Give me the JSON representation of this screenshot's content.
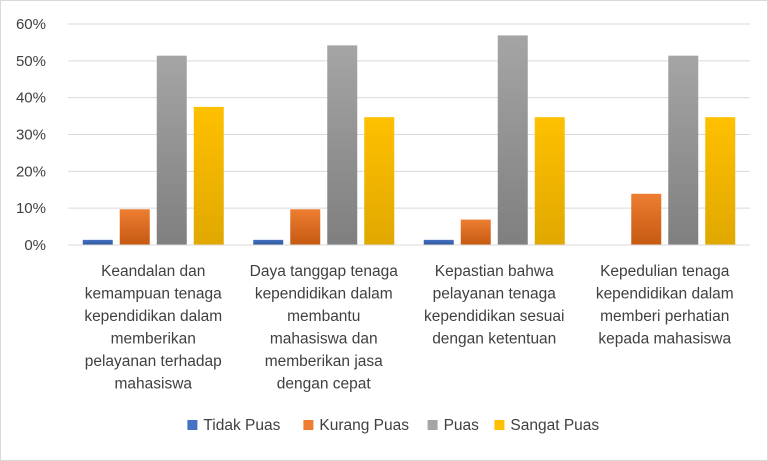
{
  "chart_data": {
    "type": "bar",
    "title": "",
    "xlabel": "",
    "ylabel": "",
    "ylim": [
      0,
      60
    ],
    "y_unit": "%",
    "y_ticks": [
      "0%",
      "10%",
      "20%",
      "30%",
      "40%",
      "50%",
      "60%"
    ],
    "grid": true,
    "legend_position": "bottom",
    "categories": [
      [
        "Keandalan dan",
        "kemampuan tenaga",
        "kependidikan dalam",
        "memberikan",
        "pelayanan terhadap",
        "mahasiswa"
      ],
      [
        "Daya tanggap tenaga",
        "kependidikan dalam",
        "membantu",
        "mahasiswa dan",
        "memberikan jasa",
        "dengan cepat"
      ],
      [
        "Kepastian bahwa",
        "pelayanan tenaga",
        "kependidikan sesuai",
        "dengan ketentuan"
      ],
      [
        "Kepedulian tenaga",
        "kependidikan dalam",
        "memberi perhatian",
        "kepada mahasiswa"
      ]
    ],
    "series": [
      {
        "name": "Tidak Puas",
        "color": "#4472C4",
        "colorDark": "#2F5597",
        "values": [
          1.4,
          1.4,
          1.4,
          0
        ]
      },
      {
        "name": "Kurang Puas",
        "color": "#ED7D31",
        "colorDark": "#C55A11",
        "values": [
          9.7,
          9.7,
          6.9,
          13.9
        ]
      },
      {
        "name": "Puas",
        "color": "#A5A5A5",
        "colorDark": "#7F7F7F",
        "values": [
          51.4,
          54.2,
          56.9,
          51.4
        ]
      },
      {
        "name": "Sangat Puas",
        "color": "#FFC000",
        "colorDark": "#E0A800",
        "values": [
          37.5,
          34.7,
          34.7,
          34.7
        ]
      }
    ]
  }
}
